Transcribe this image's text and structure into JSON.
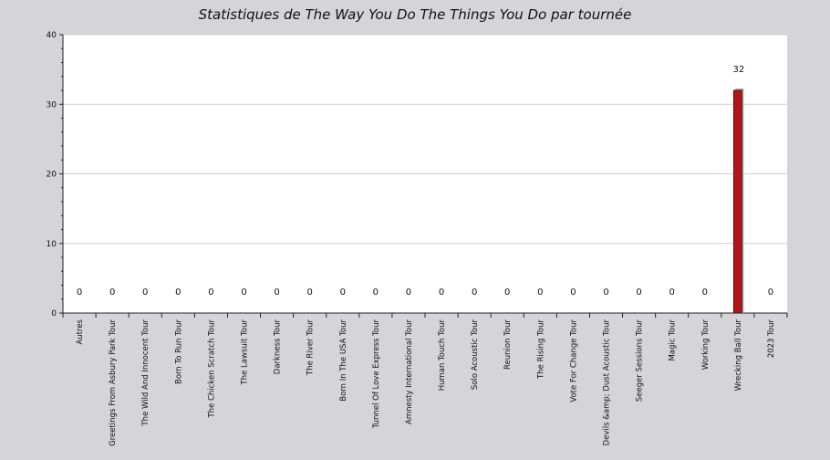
{
  "chart_data": {
    "type": "bar",
    "title": "Statistiques de The Way You Do The Things You Do par tournée",
    "categories": [
      "Autres",
      "Greetings From Asbury Park Tour",
      "The Wild And Innocent Tour",
      "Born To Run Tour",
      "The Chicken Scratch Tour",
      "The Lawsuit Tour",
      "Darkness Tour",
      "The River Tour",
      "Born In The USA Tour",
      "Tunnel Of Love Express Tour",
      "Amnesty International Tour",
      "Human Touch Tour",
      "Solo Acoustic Tour",
      "Reunion Tour",
      "The Rising Tour",
      "Vote For Change Tour",
      "Devils &amp; Dust Acoustic Tour",
      "Seeger Sessions Tour",
      "Magic Tour",
      "Working Tour",
      "Wrecking Ball Tour",
      "2023 Tour"
    ],
    "values": [
      0,
      0,
      0,
      0,
      0,
      0,
      0,
      0,
      0,
      0,
      0,
      0,
      0,
      0,
      0,
      0,
      0,
      0,
      0,
      0,
      32,
      0
    ],
    "ylim": [
      0,
      40
    ],
    "yticks": [
      0,
      10,
      20,
      30,
      40
    ],
    "grid": true,
    "colors": {
      "bar": "#b01818",
      "bar_shadow": "#a8a8a8",
      "plot_background": "#ffffff",
      "page_background": "#d5d4d9",
      "gridline": "#cfcfcf"
    }
  }
}
